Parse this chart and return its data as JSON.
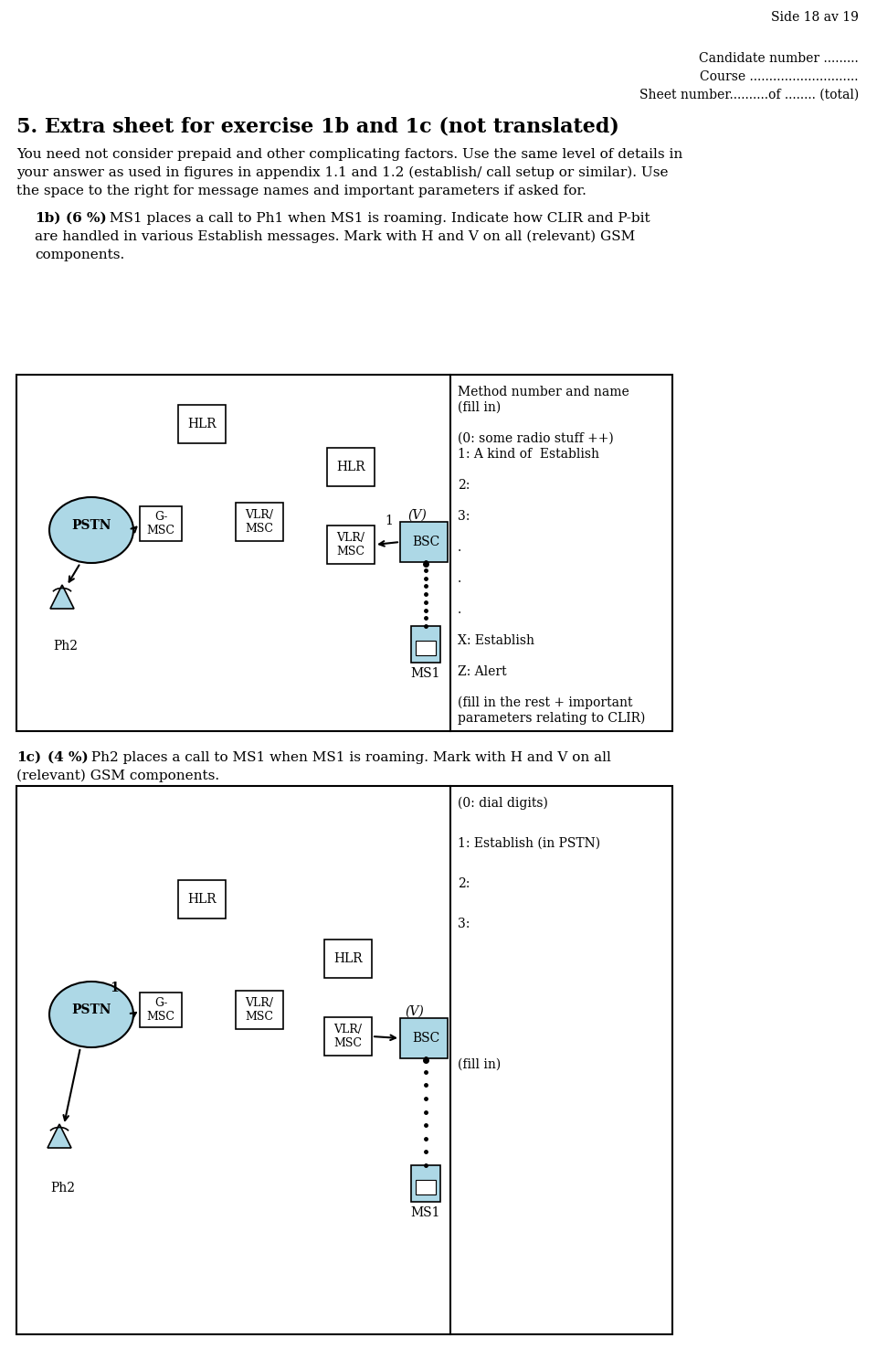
{
  "page_title": "Side 18 av 19",
  "header_lines": [
    "Candidate number .........",
    "Course ............................",
    "Sheet number..........of ........ (total)"
  ],
  "section_title": "5. Extra sheet for exercise 1b and 1c (not translated)",
  "intro_line1": "You need not consider prepaid and other complicating factors. Use the same level of details in",
  "intro_line2": "your answer as used in figures in appendix 1.1 and 1.2 (establish/ call setup or similar). Use",
  "intro_line3": "the space to the right for message names and important parameters if asked for.",
  "q1b_label": "1b)",
  "q1b_bold": "(6 %)",
  "q1b_text1": " MS1 places a call to Ph1 when MS1 is roaming. Indicate how CLIR and P-bit",
  "q1b_text2": "are handled in various Establish messages. Mark with H and V on all (relevant) GSM",
  "q1b_text3": "components.",
  "q1c_label": "1c)",
  "q1c_bold": "(4 %)",
  "q1c_text1": " Ph2 places a call to MS1 when MS1 is roaming. Mark with H and V on all",
  "q1c_text2": "(relevant) GSM components.",
  "diag1_right": [
    "Method number and name",
    "(fill in)",
    "",
    "(0: some radio stuff ++)",
    "1: A kind of  Establish",
    "",
    "2:",
    "",
    "3:",
    "",
    ".",
    "",
    ".",
    "",
    ".",
    "",
    "X: Establish",
    "",
    "Z: Alert",
    "",
    "(fill in the rest + important",
    "parameters relating to CLIR)"
  ],
  "diag2_right": [
    "(0: dial digits)",
    "",
    "1: Establish (in PSTN)",
    "",
    "2:",
    "",
    "3:",
    "",
    "",
    "",
    "",
    "",
    "",
    "(fill in)"
  ],
  "bg_color": "#ffffff",
  "ellipse_fill": "#add8e6",
  "ms1_fill": "#add8e6",
  "bsc_fill": "#add8e6"
}
